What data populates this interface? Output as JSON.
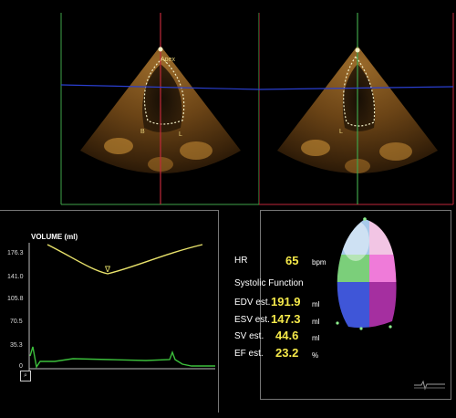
{
  "left_view": {
    "apex_label": "Apex",
    "marker_b": "B",
    "marker_l": "L"
  },
  "right_view": {
    "marker_l": "L"
  },
  "volume_plot": {
    "title": "VOLUME (ml)",
    "y_ticks": [
      "176.3",
      "141.0",
      "105.8",
      "70.5",
      "35.3",
      "0"
    ],
    "trough_marker": "∇"
  },
  "metrics": {
    "hr": {
      "label": "HR",
      "value": "65",
      "unit": "bpm"
    },
    "section_title": "Systolic Function",
    "edv": {
      "label": "EDV est.",
      "value": "191.9",
      "unit": "ml"
    },
    "esv": {
      "label": "ESV est.",
      "value": "147.3",
      "unit": "ml"
    },
    "sv": {
      "label": "SV est.",
      "value": "44.6",
      "unit": "ml"
    },
    "ef": {
      "label": "EF est.",
      "value": "23.2",
      "unit": "%"
    }
  },
  "colors": {
    "green_frame": "#3fa34a",
    "red_frame": "#c0283a",
    "blue_line": "#2a3fd0",
    "volume_curve": "#e9e36b",
    "ecg_trace": "#3cbf3c",
    "value_yellow": "#f5e94a"
  },
  "icons": [
    "zoom-icon",
    "apex-marker-icon",
    "ecg-thumbnail-icon"
  ]
}
